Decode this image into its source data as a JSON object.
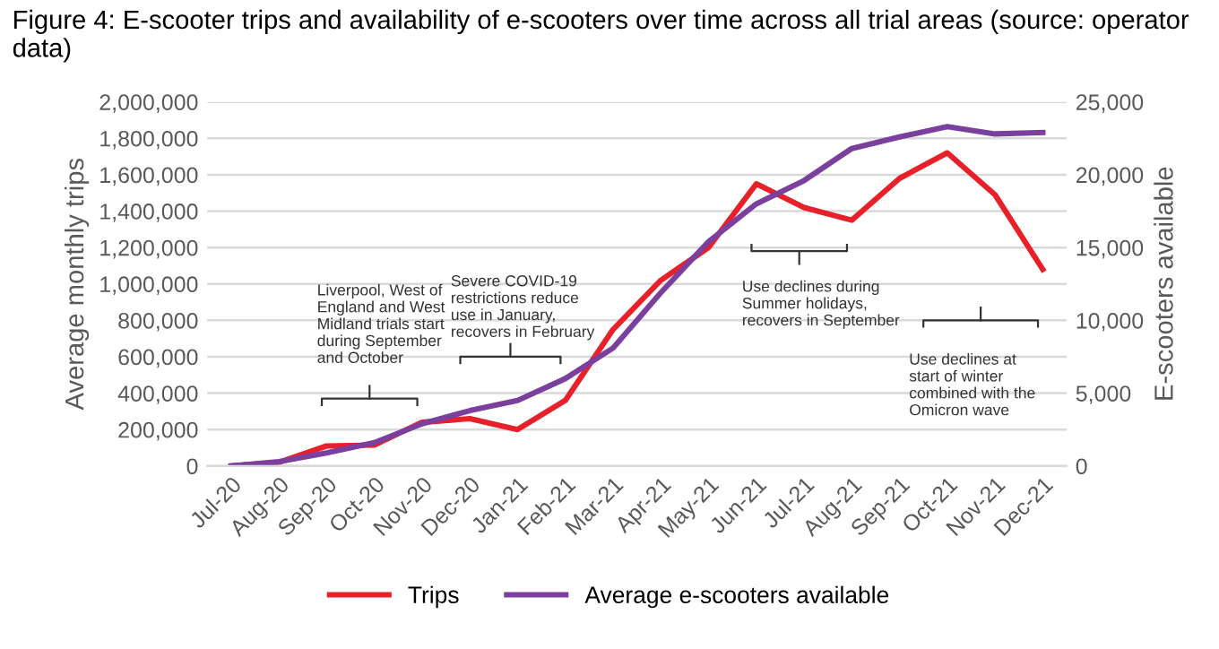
{
  "chart_data": {
    "type": "line",
    "title": "Figure 4: E-scooter trips and availability of e-scooters over time across all trial areas (source: operator data)",
    "categories": [
      "Jul-20",
      "Aug-20",
      "Sep-20",
      "Oct-20",
      "Nov-20",
      "Dec-20",
      "Jan-21",
      "Feb-21",
      "Mar-21",
      "Apr-21",
      "May-21",
      "Jun-21",
      "Jul-21",
      "Aug-21",
      "Sep-21",
      "Oct-21",
      "Nov-21",
      "Dec-21"
    ],
    "series": [
      {
        "name": "Trips",
        "color": "#e8202a",
        "values": [
          0,
          20000,
          110000,
          115000,
          240000,
          260000,
          200000,
          360000,
          750000,
          1020000,
          1200000,
          1550000,
          1420000,
          1350000,
          1580000,
          1720000,
          1490000,
          1080000
        ]
      },
      {
        "name": "Average e-scooters available",
        "color": "#7b3f9e",
        "axis": "y2",
        "values": [
          0,
          300,
          900,
          1600,
          2900,
          3800,
          4500,
          6000,
          8100,
          11900,
          15400,
          18000,
          19600,
          21800,
          22600,
          23300,
          22800,
          22900
        ]
      }
    ],
    "ylabel": "Average monthly trips",
    "y2label": "E-scooters available",
    "ylim": [
      0,
      2000000
    ],
    "yticks": [
      {
        "value": 0,
        "label": "0"
      },
      {
        "value": 200000,
        "label": "200,000"
      },
      {
        "value": 400000,
        "label": "400,000"
      },
      {
        "value": 600000,
        "label": "600,000"
      },
      {
        "value": 800000,
        "label": "800,000"
      },
      {
        "value": 1000000,
        "label": "1,000,000"
      },
      {
        "value": 1200000,
        "label": "1,200,000"
      },
      {
        "value": 1400000,
        "label": "1,400,000"
      },
      {
        "value": 1600000,
        "label": "1,600,000"
      },
      {
        "value": 1800000,
        "label": "1,800,000"
      },
      {
        "value": 2000000,
        "label": "2,000,000"
      }
    ],
    "y2lim": [
      0,
      25000
    ],
    "y2ticks": [
      {
        "value": 0,
        "label": "0"
      },
      {
        "value": 5000,
        "label": "5,000"
      },
      {
        "value": 10000,
        "label": "10,000"
      },
      {
        "value": 15000,
        "label": "15,000"
      },
      {
        "value": 20000,
        "label": "20,000"
      },
      {
        "value": 25000,
        "label": "25,000"
      }
    ],
    "annotations": [
      "Liverpool, West of\nEngland and West\nMidland trials start\nduring September\nand October",
      "Severe COVID-19\nrestrictions reduce\nuse in January,\nrecovers in February",
      "Use declines during\nSummer holidays,\nrecovers in September",
      "Use declines at\nstart of winter\ncombined with the\nOmicron wave"
    ],
    "grid": "y",
    "legend": "bottom",
    "marker": "none",
    "line_style": "solid"
  }
}
